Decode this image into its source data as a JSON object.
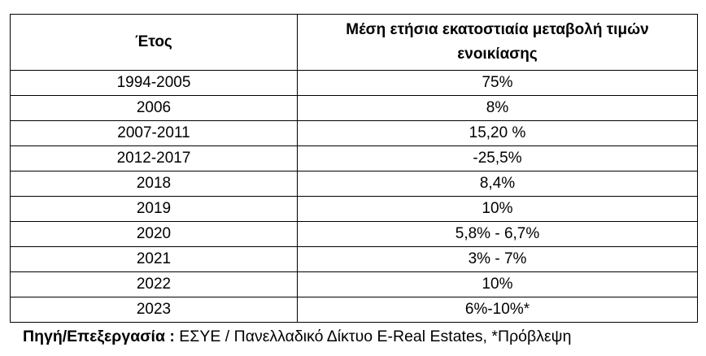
{
  "table": {
    "header": [
      "Έτος",
      "Μέση ετήσια εκατοστιαία μεταβολή τιμών ενοικίασης"
    ],
    "rows": [
      [
        "1994-2005",
        "75%"
      ],
      [
        "2006",
        "8%"
      ],
      [
        "2007-2011",
        "15,20 %"
      ],
      [
        "2012-2017",
        "-25,5%"
      ],
      [
        "2018",
        "8,4%"
      ],
      [
        "2019",
        "10%"
      ],
      [
        "2020",
        "5,8% - 6,7%"
      ],
      [
        "2021",
        "3% - 7%"
      ],
      [
        "2022",
        "10%"
      ],
      [
        "2023",
        "6%-10%*"
      ]
    ]
  },
  "footer": {
    "label": "Πηγή/Επεξεργασία :",
    "text": "ΕΣΥΕ / Πανελλαδικό Δίκτυο E-Real Estates, *Πρόβλεψη"
  }
}
